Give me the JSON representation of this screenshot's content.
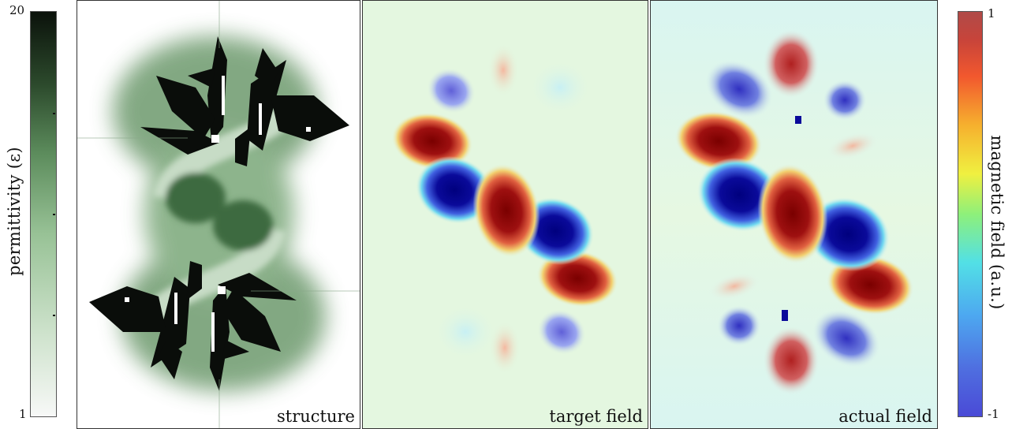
{
  "left_colorbar": {
    "title": "permittivity (ε)",
    "max_label": "20",
    "min_label": "1",
    "range": [
      1,
      20
    ],
    "colors": {
      "low": "#f6f7f6",
      "mid": "#8cb88a",
      "high": "#0b120b"
    }
  },
  "right_colorbar": {
    "title": "magnetic field (a.u.)",
    "max_label": "1",
    "min_label": "-1",
    "range": [
      -1,
      1
    ],
    "colormap": "jet-like"
  },
  "panels": [
    {
      "label": "structure"
    },
    {
      "label": "target field"
    },
    {
      "label": "actual field"
    }
  ],
  "colors": {
    "field_background": "#e4f7e0",
    "field_positive": "#8b0000",
    "field_negative": "#00008b",
    "structure_background": "#ffffff",
    "structure_material": "#0a0d0a",
    "structure_halo": "#4f7f50"
  }
}
